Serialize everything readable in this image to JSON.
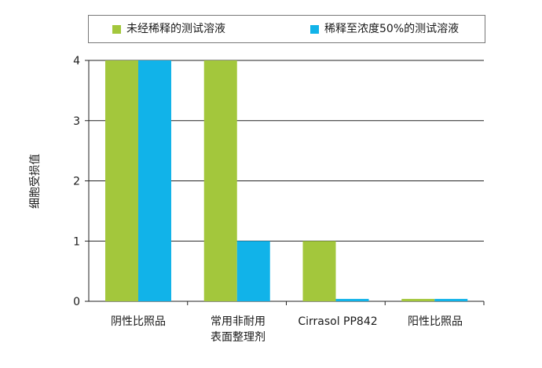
{
  "chart_data": {
    "type": "bar",
    "title": "",
    "xlabel": "",
    "ylabel": "细胞受损值",
    "ylim": [
      0,
      4
    ],
    "yticks": [
      0,
      1,
      2,
      3,
      4
    ],
    "categories": [
      "阴性比照品",
      "常用非耐用表面整理剂",
      "Cirrasol PP842",
      "阳性比照品"
    ],
    "series": [
      {
        "name": "未经稀释的测试溶液",
        "color": "#a3c73c",
        "values": [
          4,
          4,
          1,
          0.04
        ]
      },
      {
        "name": "稀释至浓度50%的测试溶液",
        "color": "#11b3e9",
        "values": [
          4,
          1,
          0.04,
          0.04
        ]
      }
    ],
    "grid": true,
    "legend_position": "top"
  }
}
